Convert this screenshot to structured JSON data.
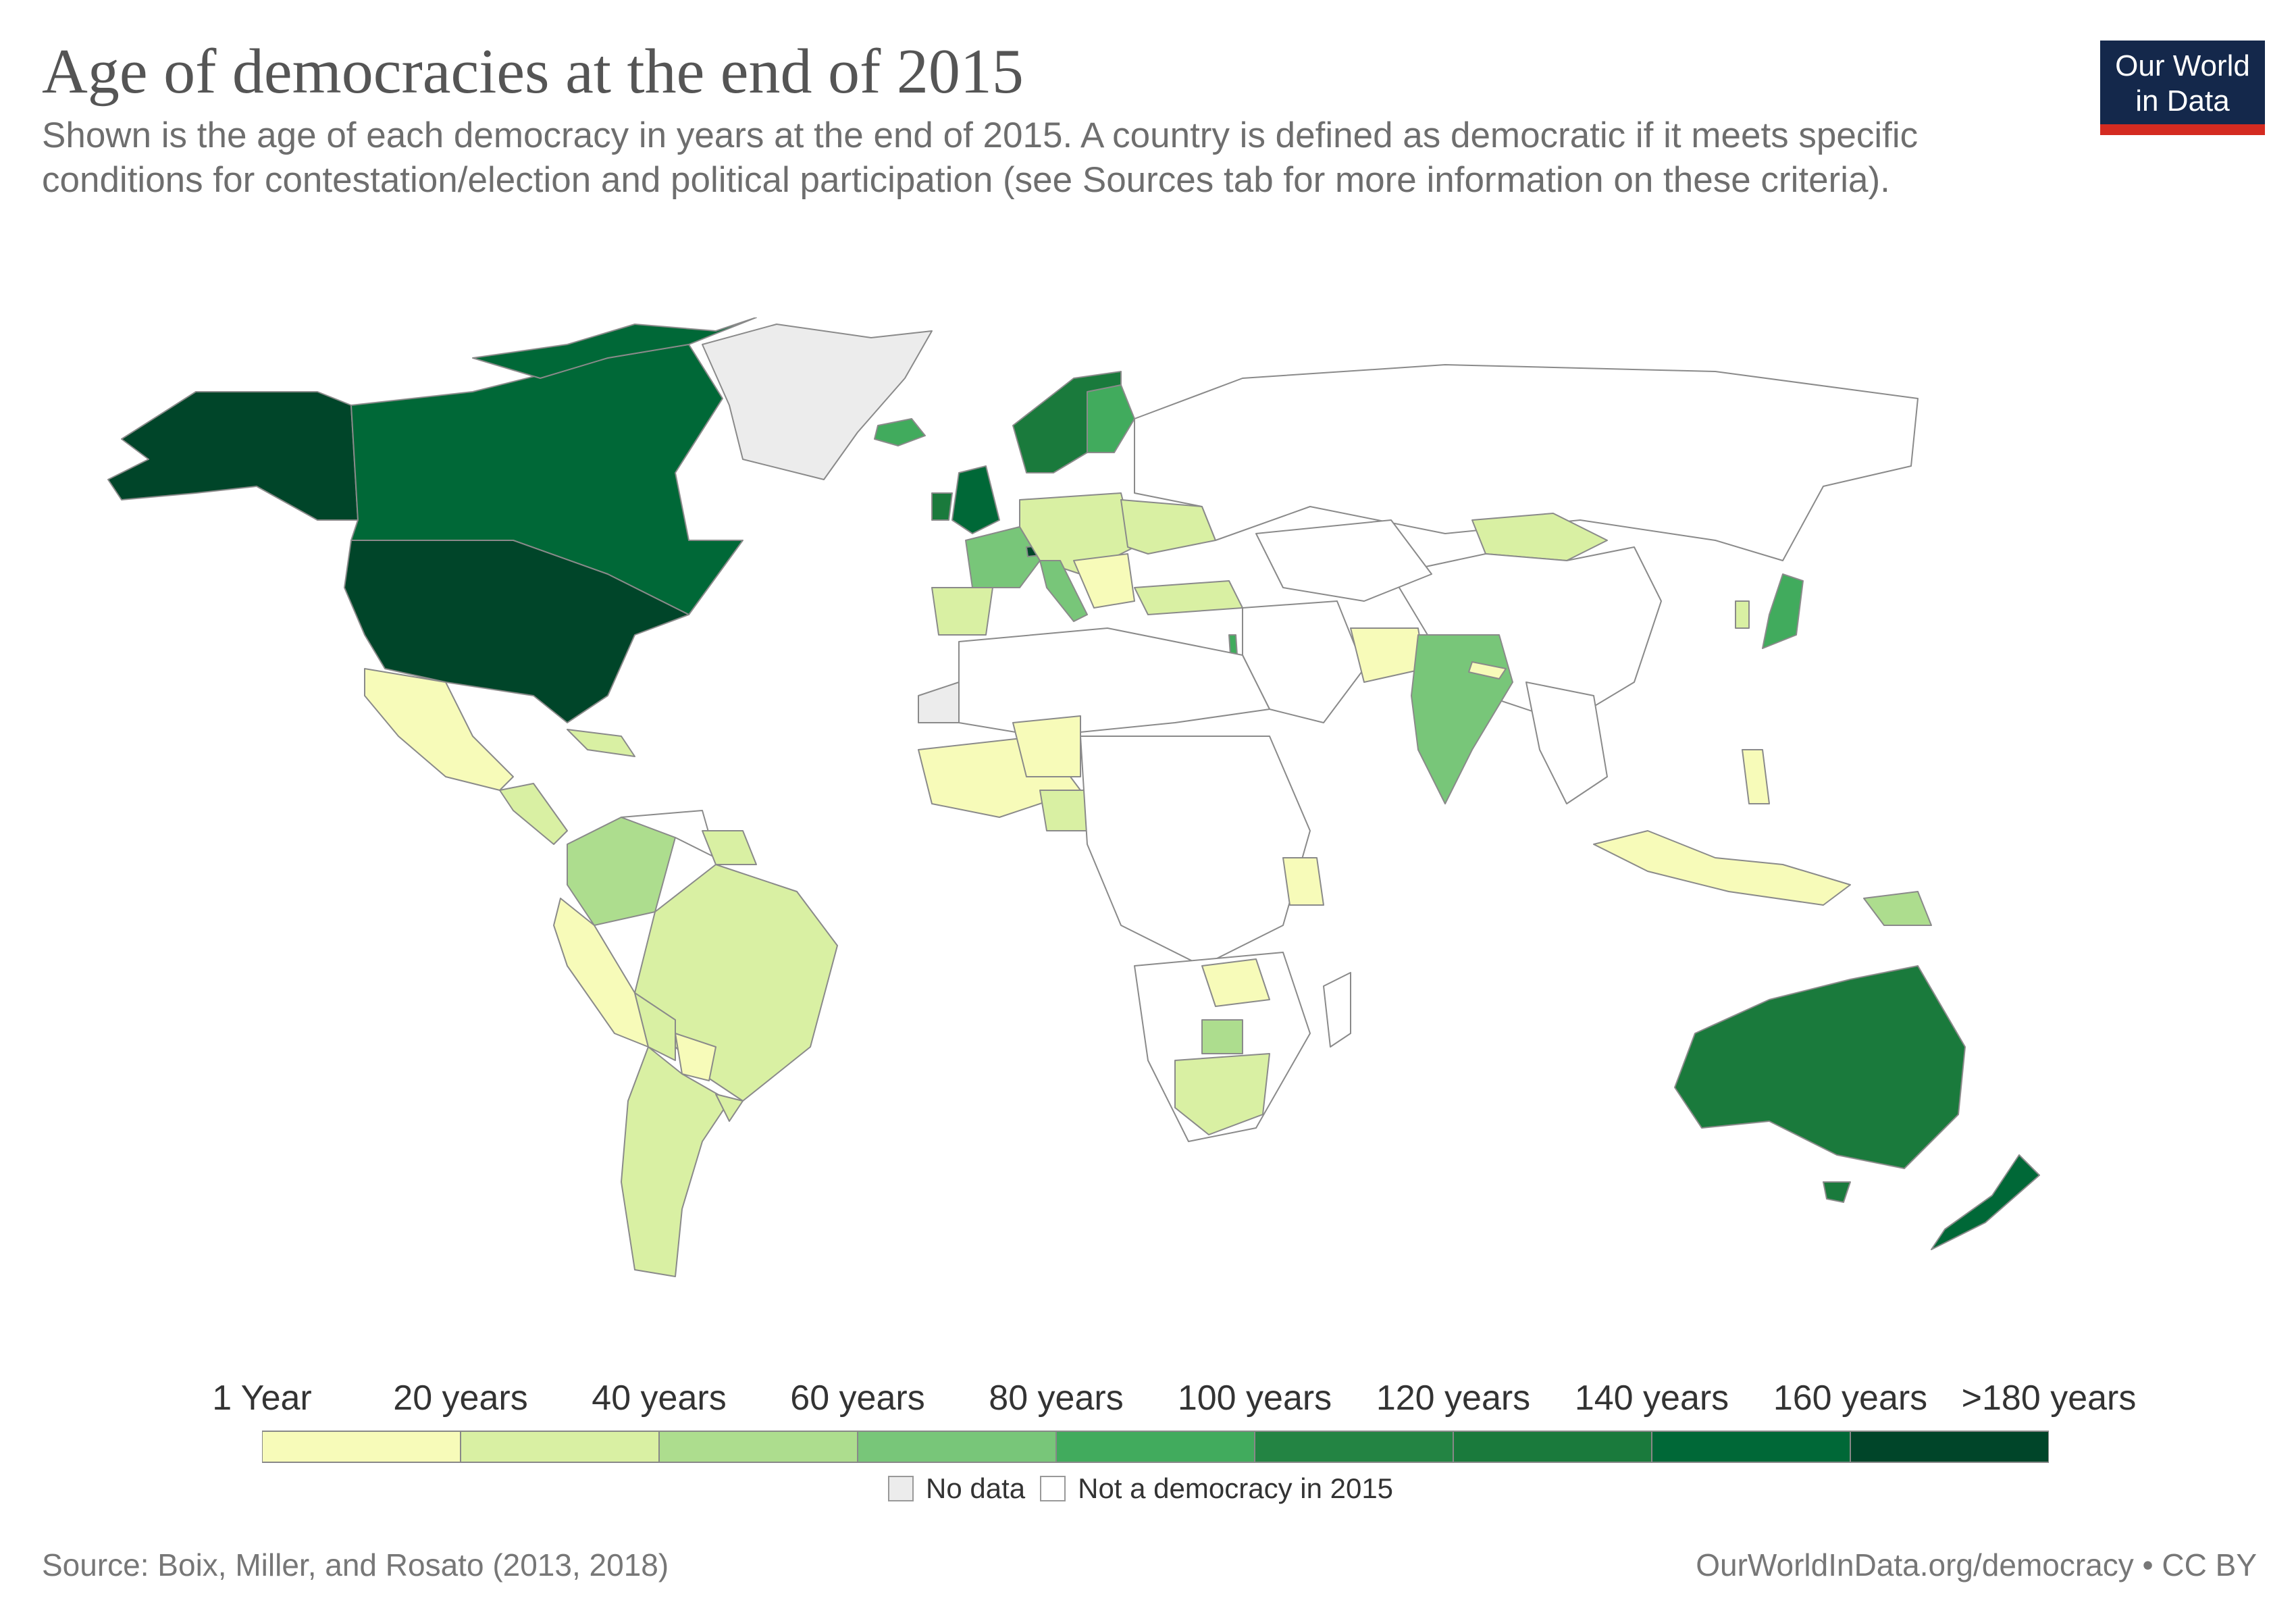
{
  "header": {
    "title": "Age of democracies at the end of 2015",
    "subtitle": "Shown is the age of each democracy in years at the end of 2015. A country is defined as democratic if it meets specific conditions for contestation/election and political participation (see Sources tab for more information on these criteria)."
  },
  "logo": {
    "line1": "Our World",
    "line2": "in Data"
  },
  "legend": {
    "ticks": [
      "1 Year",
      "20 years",
      "40 years",
      "60 years",
      "80 years",
      "100 years",
      "120 years",
      "140 years",
      "160 years",
      ">180 years"
    ],
    "bins": [
      "#f7fbb9",
      "#d9f0a3",
      "#addd8e",
      "#78c679",
      "#41ab5d",
      "#238443",
      "#1a7a3c",
      "#006837",
      "#004529"
    ],
    "no_data_label": "No data",
    "no_data_color": "#ececec",
    "not_democracy_label": "Not a democracy in 2015",
    "not_democracy_color": "#ffffff"
  },
  "footer": {
    "source": "Source: Boix, Miller, and Rosato (2013, 2018)",
    "url": "OurWorldInData.org/democracy • CC BY"
  }
}
